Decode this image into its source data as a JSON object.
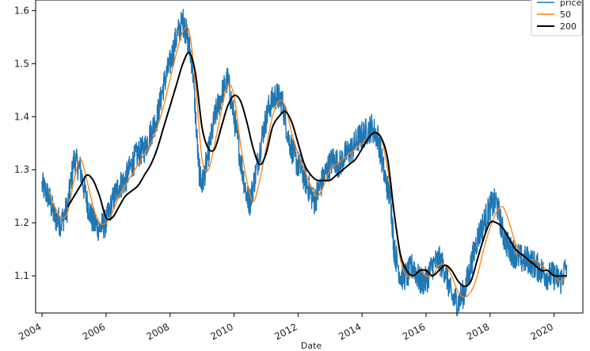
{
  "chart_data": {
    "type": "line",
    "xlabel": "Date",
    "ylabel": "",
    "xlim": [
      2003.8,
      2020.9
    ],
    "ylim": [
      1.03,
      1.62
    ],
    "x_ticks": [
      {
        "value": 2004,
        "label": "2004"
      },
      {
        "value": 2006,
        "label": "2006"
      },
      {
        "value": 2008,
        "label": "2008"
      },
      {
        "value": 2010,
        "label": "2010"
      },
      {
        "value": 2012,
        "label": "2012"
      },
      {
        "value": 2014,
        "label": "2014"
      },
      {
        "value": 2016,
        "label": "2016"
      },
      {
        "value": 2018,
        "label": "2018"
      },
      {
        "value": 2020,
        "label": "2020"
      }
    ],
    "y_ticks": [
      {
        "value": 1.1,
        "label": "1.1"
      },
      {
        "value": 1.2,
        "label": "1.2"
      },
      {
        "value": 1.3,
        "label": "1.3"
      },
      {
        "value": 1.4,
        "label": "1.4"
      },
      {
        "value": 1.5,
        "label": "1.5"
      },
      {
        "value": 1.6,
        "label": "1.6"
      }
    ],
    "grid": false,
    "legend_position": "top-right",
    "series": [
      {
        "name": "price",
        "color": "#1f77b4",
        "style": "noisy",
        "x": [
          2004.0,
          2004.2,
          2004.4,
          2004.6,
          2004.8,
          2005.0,
          2005.2,
          2005.4,
          2005.6,
          2005.8,
          2006.0,
          2006.2,
          2006.4,
          2006.6,
          2006.8,
          2007.0,
          2007.2,
          2007.4,
          2007.6,
          2007.8,
          2008.0,
          2008.2,
          2008.4,
          2008.5,
          2008.7,
          2008.9,
          2009.0,
          2009.2,
          2009.4,
          2009.6,
          2009.8,
          2010.0,
          2010.2,
          2010.4,
          2010.5,
          2010.7,
          2010.9,
          2011.1,
          2011.3,
          2011.5,
          2011.7,
          2011.9,
          2012.1,
          2012.3,
          2012.5,
          2012.7,
          2012.9,
          2013.1,
          2013.3,
          2013.5,
          2013.7,
          2013.9,
          2014.1,
          2014.3,
          2014.5,
          2014.7,
          2014.9,
          2015.0,
          2015.2,
          2015.4,
          2015.6,
          2015.8,
          2016.0,
          2016.2,
          2016.4,
          2016.6,
          2016.8,
          2017.0,
          2017.2,
          2017.4,
          2017.6,
          2017.8,
          2018.0,
          2018.2,
          2018.4,
          2018.6,
          2018.8,
          2019.0,
          2019.2,
          2019.4,
          2019.6,
          2019.8,
          2020.0,
          2020.2,
          2020.4
        ],
        "values": [
          1.27,
          1.25,
          1.21,
          1.2,
          1.23,
          1.32,
          1.3,
          1.24,
          1.2,
          1.19,
          1.2,
          1.24,
          1.27,
          1.28,
          1.31,
          1.33,
          1.34,
          1.37,
          1.4,
          1.46,
          1.5,
          1.55,
          1.58,
          1.56,
          1.5,
          1.3,
          1.27,
          1.33,
          1.4,
          1.44,
          1.47,
          1.4,
          1.32,
          1.25,
          1.24,
          1.3,
          1.37,
          1.42,
          1.44,
          1.43,
          1.36,
          1.32,
          1.3,
          1.27,
          1.24,
          1.27,
          1.3,
          1.32,
          1.31,
          1.33,
          1.34,
          1.36,
          1.37,
          1.38,
          1.36,
          1.29,
          1.24,
          1.15,
          1.1,
          1.1,
          1.12,
          1.09,
          1.09,
          1.12,
          1.13,
          1.11,
          1.06,
          1.05,
          1.07,
          1.12,
          1.17,
          1.2,
          1.23,
          1.24,
          1.18,
          1.15,
          1.14,
          1.13,
          1.13,
          1.12,
          1.11,
          1.1,
          1.1,
          1.09,
          1.12
        ]
      },
      {
        "name": "50",
        "color": "#ff7f0e",
        "style": "smooth",
        "x": [
          2004.2,
          2004.4,
          2004.6,
          2004.8,
          2005.0,
          2005.2,
          2005.4,
          2005.6,
          2005.8,
          2006.0,
          2006.2,
          2006.4,
          2006.6,
          2006.8,
          2007.0,
          2007.2,
          2007.4,
          2007.6,
          2007.8,
          2008.0,
          2008.2,
          2008.4,
          2008.6,
          2008.8,
          2009.0,
          2009.2,
          2009.4,
          2009.6,
          2009.8,
          2010.0,
          2010.2,
          2010.4,
          2010.6,
          2010.8,
          2011.0,
          2011.2,
          2011.4,
          2011.6,
          2011.8,
          2012.0,
          2012.2,
          2012.4,
          2012.6,
          2012.8,
          2013.0,
          2013.2,
          2013.4,
          2013.6,
          2013.8,
          2014.0,
          2014.2,
          2014.4,
          2014.6,
          2014.8,
          2015.0,
          2015.2,
          2015.4,
          2015.6,
          2015.8,
          2016.0,
          2016.2,
          2016.4,
          2016.6,
          2016.8,
          2017.0,
          2017.2,
          2017.4,
          2017.6,
          2017.8,
          2018.0,
          2018.2,
          2018.4,
          2018.6,
          2018.8,
          2019.0,
          2019.2,
          2019.4,
          2019.6,
          2019.8,
          2020.0,
          2020.2,
          2020.4
        ],
        "values": [
          1.26,
          1.23,
          1.21,
          1.22,
          1.28,
          1.32,
          1.28,
          1.23,
          1.2,
          1.2,
          1.22,
          1.25,
          1.27,
          1.29,
          1.31,
          1.33,
          1.35,
          1.38,
          1.42,
          1.47,
          1.52,
          1.56,
          1.56,
          1.46,
          1.32,
          1.3,
          1.35,
          1.41,
          1.46,
          1.44,
          1.35,
          1.28,
          1.24,
          1.28,
          1.34,
          1.4,
          1.43,
          1.42,
          1.37,
          1.33,
          1.3,
          1.27,
          1.25,
          1.27,
          1.3,
          1.31,
          1.32,
          1.33,
          1.34,
          1.35,
          1.36,
          1.37,
          1.36,
          1.3,
          1.22,
          1.13,
          1.1,
          1.1,
          1.11,
          1.1,
          1.1,
          1.12,
          1.12,
          1.1,
          1.07,
          1.06,
          1.07,
          1.1,
          1.15,
          1.19,
          1.22,
          1.23,
          1.2,
          1.16,
          1.14,
          1.13,
          1.13,
          1.12,
          1.11,
          1.1,
          1.09,
          1.1
        ]
      },
      {
        "name": "200",
        "color": "#000000",
        "style": "smooth",
        "x": [
          2004.8,
          2005.0,
          2005.2,
          2005.4,
          2005.6,
          2005.8,
          2006.0,
          2006.2,
          2006.4,
          2006.6,
          2006.8,
          2007.0,
          2007.2,
          2007.4,
          2007.6,
          2007.8,
          2008.0,
          2008.2,
          2008.4,
          2008.6,
          2008.8,
          2009.0,
          2009.2,
          2009.4,
          2009.6,
          2009.8,
          2010.0,
          2010.2,
          2010.4,
          2010.6,
          2010.8,
          2011.0,
          2011.2,
          2011.4,
          2011.6,
          2011.8,
          2012.0,
          2012.2,
          2012.4,
          2012.6,
          2012.8,
          2013.0,
          2013.2,
          2013.4,
          2013.6,
          2013.8,
          2014.0,
          2014.2,
          2014.4,
          2014.6,
          2014.8,
          2015.0,
          2015.2,
          2015.4,
          2015.6,
          2015.8,
          2016.0,
          2016.2,
          2016.4,
          2016.6,
          2016.8,
          2017.0,
          2017.2,
          2017.4,
          2017.6,
          2017.8,
          2018.0,
          2018.2,
          2018.4,
          2018.6,
          2018.8,
          2019.0,
          2019.2,
          2019.4,
          2019.6,
          2019.8,
          2020.0,
          2020.2,
          2020.4
        ],
        "values": [
          1.23,
          1.25,
          1.27,
          1.29,
          1.28,
          1.25,
          1.21,
          1.21,
          1.23,
          1.25,
          1.26,
          1.27,
          1.29,
          1.31,
          1.34,
          1.38,
          1.42,
          1.46,
          1.5,
          1.52,
          1.48,
          1.38,
          1.34,
          1.34,
          1.38,
          1.42,
          1.44,
          1.43,
          1.39,
          1.34,
          1.31,
          1.33,
          1.38,
          1.4,
          1.41,
          1.39,
          1.35,
          1.31,
          1.29,
          1.28,
          1.28,
          1.28,
          1.29,
          1.3,
          1.31,
          1.32,
          1.34,
          1.36,
          1.37,
          1.36,
          1.32,
          1.22,
          1.14,
          1.11,
          1.1,
          1.11,
          1.11,
          1.1,
          1.11,
          1.12,
          1.11,
          1.09,
          1.08,
          1.09,
          1.13,
          1.17,
          1.2,
          1.2,
          1.19,
          1.17,
          1.15,
          1.14,
          1.13,
          1.12,
          1.11,
          1.11,
          1.1,
          1.1,
          1.1
        ]
      }
    ]
  }
}
